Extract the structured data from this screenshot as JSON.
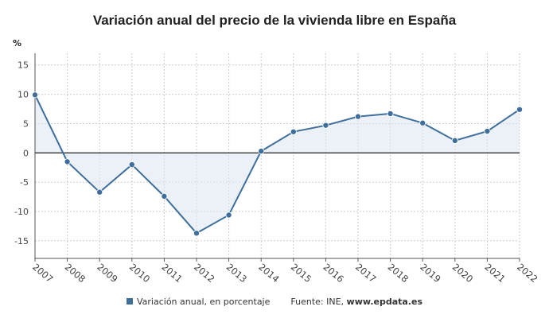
{
  "chart_data": {
    "type": "line",
    "title": "Variación anual del precio de la vivienda libre en España",
    "ylabel": "%",
    "xlabel": "",
    "x": [
      "2007",
      "2008",
      "2009",
      "2010",
      "2011",
      "2012",
      "2013",
      "2014",
      "2015",
      "2016",
      "2017",
      "2018",
      "2019",
      "2020",
      "2021",
      "2022"
    ],
    "series": [
      {
        "name": "Variación anual, en porcentaje",
        "values": [
          9.9,
          -1.5,
          -6.7,
          -2.0,
          -7.4,
          -13.7,
          -10.6,
          0.3,
          3.6,
          4.7,
          6.2,
          6.7,
          5.1,
          2.1,
          3.7,
          7.4
        ]
      }
    ],
    "yticks": [
      15,
      10,
      5,
      0,
      -5,
      -10,
      -15
    ],
    "ylim": [
      -18,
      17
    ],
    "grid": true,
    "legend_position": "bottom",
    "source_label": "Fuente: INE,",
    "source_site": "www.epdata.es",
    "colors": {
      "line": "#3e6f9c",
      "fill": "#dde5f2",
      "zero": "#333333",
      "grid": "#cccccc"
    }
  }
}
